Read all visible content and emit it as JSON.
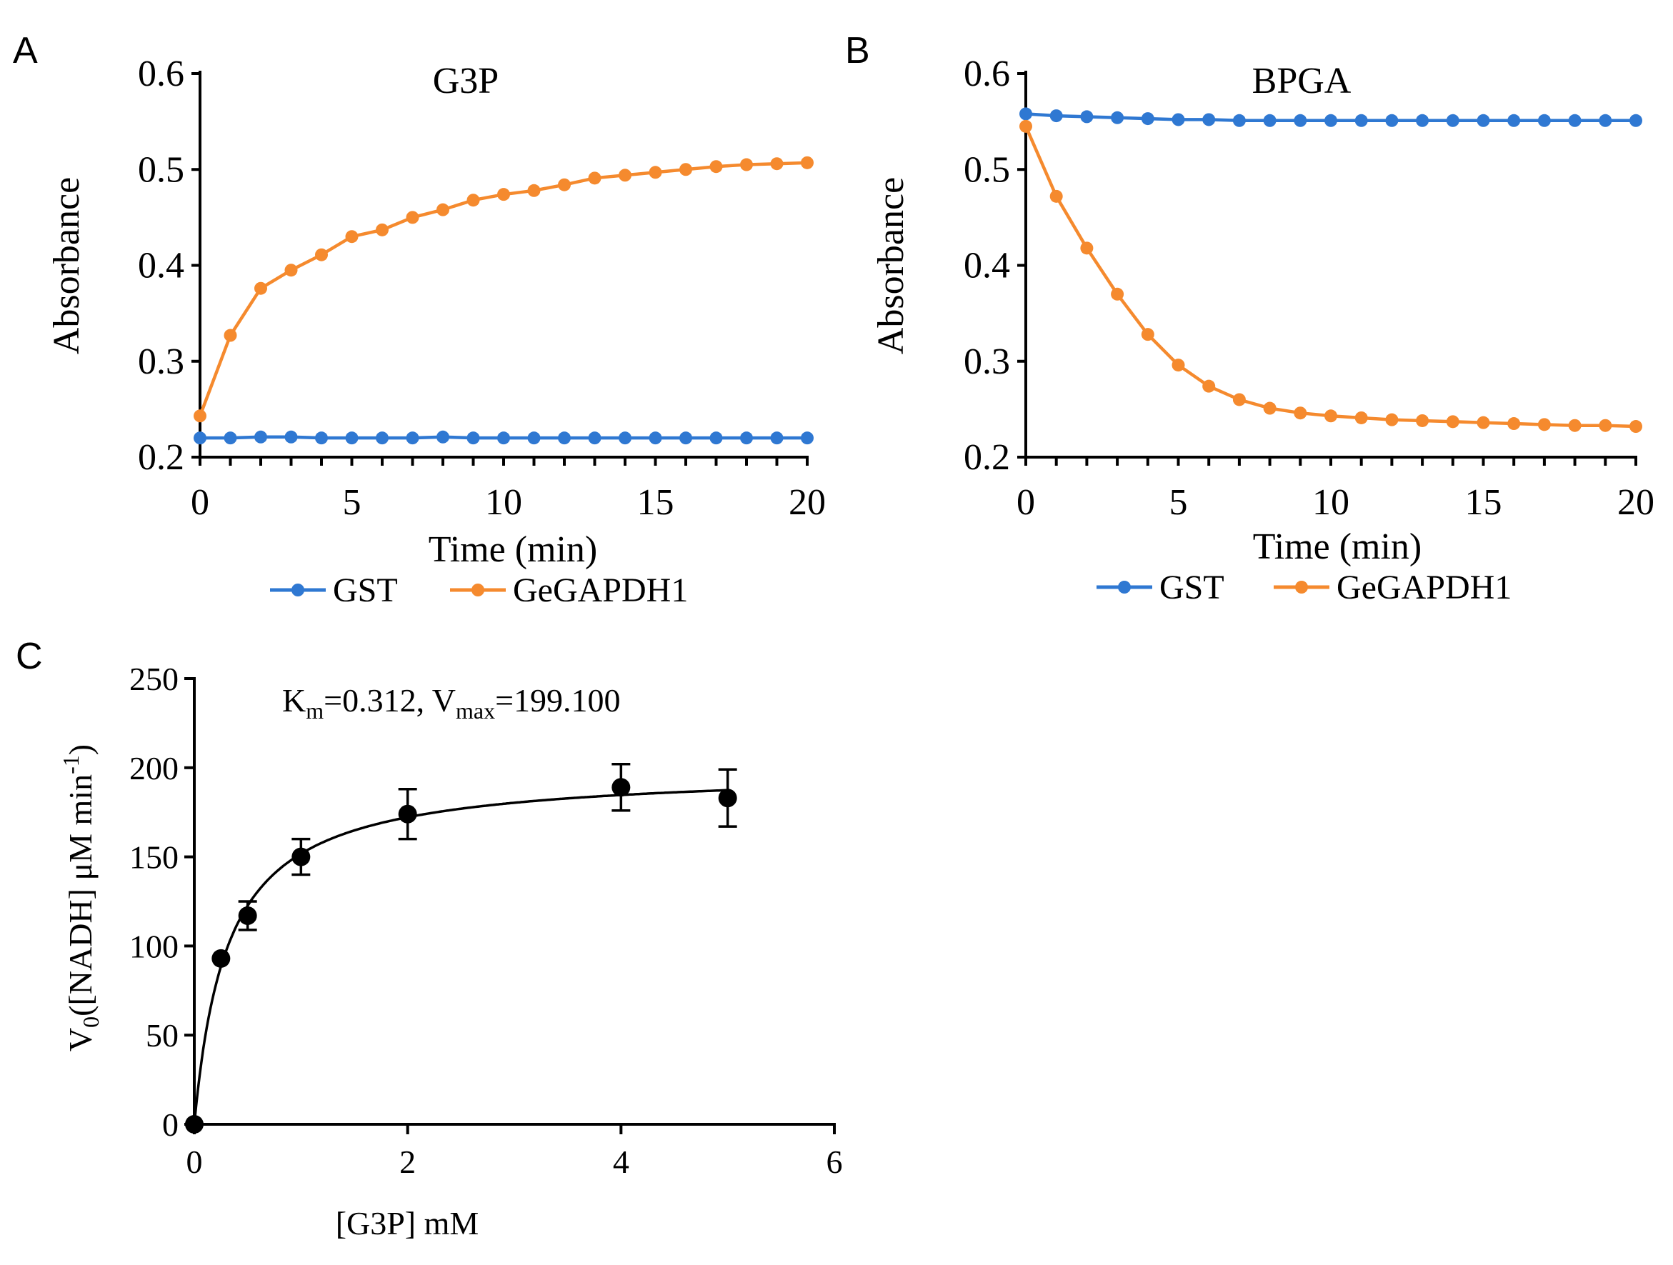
{
  "colors": {
    "gst": "#2F78D2",
    "gegapdh1": "#F58A2E",
    "kinetics": "#000000"
  },
  "chart_data": [
    {
      "panel_label": "A",
      "type": "line",
      "title": "G3P",
      "xlabel": "Time (min)",
      "ylabel": "Absorbance",
      "xlim": [
        0,
        20
      ],
      "ylim": [
        0.2,
        0.6
      ],
      "x_ticks": [
        "0",
        "5",
        "10",
        "15",
        "20"
      ],
      "y_ticks": [
        "0.2",
        "0.3",
        "0.4",
        "0.5",
        "0.6"
      ],
      "x": [
        0,
        1,
        2,
        3,
        4,
        5,
        6,
        7,
        8,
        9,
        10,
        11,
        12,
        13,
        14,
        15,
        16,
        17,
        18,
        19,
        20
      ],
      "series": [
        {
          "name": "GST",
          "values": [
            0.22,
            0.22,
            0.221,
            0.221,
            0.22,
            0.22,
            0.22,
            0.22,
            0.221,
            0.22,
            0.22,
            0.22,
            0.22,
            0.22,
            0.22,
            0.22,
            0.22,
            0.22,
            0.22,
            0.22,
            0.22
          ]
        },
        {
          "name": "GeGAPDH1",
          "values": [
            0.243,
            0.327,
            0.376,
            0.395,
            0.411,
            0.43,
            0.437,
            0.45,
            0.458,
            0.468,
            0.474,
            0.478,
            0.484,
            0.491,
            0.494,
            0.497,
            0.5,
            0.503,
            0.505,
            0.506,
            0.507
          ]
        }
      ],
      "legend": [
        "GST",
        "GeGAPDH1"
      ]
    },
    {
      "panel_label": "B",
      "type": "line",
      "title": "BPGA",
      "xlabel": "Time (min)",
      "ylabel": "Absorbance",
      "xlim": [
        0,
        20
      ],
      "ylim": [
        0.2,
        0.6
      ],
      "x_ticks": [
        "0",
        "5",
        "10",
        "15",
        "20"
      ],
      "y_ticks": [
        "0.2",
        "0.3",
        "0.4",
        "0.5",
        "0.6"
      ],
      "x": [
        0,
        1,
        2,
        3,
        4,
        5,
        6,
        7,
        8,
        9,
        10,
        11,
        12,
        13,
        14,
        15,
        16,
        17,
        18,
        19,
        20
      ],
      "series": [
        {
          "name": "GST",
          "values": [
            0.558,
            0.556,
            0.555,
            0.554,
            0.553,
            0.552,
            0.552,
            0.551,
            0.551,
            0.551,
            0.551,
            0.551,
            0.551,
            0.551,
            0.551,
            0.551,
            0.551,
            0.551,
            0.551,
            0.551,
            0.551
          ]
        },
        {
          "name": "GeGAPDH1",
          "values": [
            0.545,
            0.472,
            0.418,
            0.37,
            0.328,
            0.296,
            0.274,
            0.26,
            0.251,
            0.246,
            0.243,
            0.241,
            0.239,
            0.238,
            0.237,
            0.236,
            0.235,
            0.234,
            0.233,
            0.233,
            0.232
          ]
        }
      ],
      "legend": [
        "GST",
        "GeGAPDH1"
      ]
    },
    {
      "panel_label": "C",
      "type": "scatter",
      "annotation": {
        "k": "K",
        "k_sub": "m",
        "k_val": "=0.312, ",
        "v": "V",
        "v_sub": "max",
        "v_val": "=199.100"
      },
      "xlabel": "[G3P] mM",
      "ylabel": {
        "v": "V",
        "sub": "0",
        "rest": "([NADH] μM min",
        "sup": "-1",
        "close": ")"
      },
      "xlim": [
        0,
        6
      ],
      "ylim": [
        0,
        250
      ],
      "x_ticks": [
        "0",
        "2",
        "4",
        "6"
      ],
      "y_ticks": [
        "0",
        "50",
        "100",
        "150",
        "200",
        "250"
      ],
      "points": [
        {
          "x": 0,
          "y": 0,
          "err": 0
        },
        {
          "x": 0.25,
          "y": 93,
          "err": 0
        },
        {
          "x": 0.5,
          "y": 117,
          "err": 8
        },
        {
          "x": 1,
          "y": 150,
          "err": 10
        },
        {
          "x": 2,
          "y": 174,
          "err": 14
        },
        {
          "x": 4,
          "y": 189,
          "err": 13
        },
        {
          "x": 5,
          "y": 183,
          "err": 16
        }
      ],
      "fit": {
        "model": "Michaelis-Menten",
        "Km": 0.312,
        "Vmax": 199.1
      }
    }
  ]
}
